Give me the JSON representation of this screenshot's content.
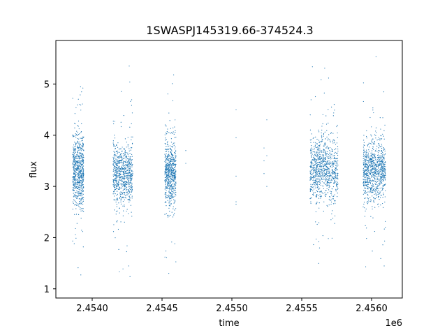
{
  "chart_data": {
    "type": "scatter",
    "title": "1SWASPJ145319.66-374524.3",
    "xlabel": "time",
    "ylabel": "flux",
    "x_offset_label": "1e6",
    "xlim": [
      2453740,
      2456220
    ],
    "ylim": [
      0.82,
      5.85
    ],
    "x_ticks": [
      2454000,
      2454500,
      2455000,
      2455500,
      2456000
    ],
    "x_tick_labels": [
      "2.4540",
      "2.4545",
      "2.4550",
      "2.4555",
      "2.4560"
    ],
    "y_ticks": [
      1,
      2,
      3,
      4,
      5
    ],
    "y_tick_labels": [
      "1",
      "2",
      "3",
      "4",
      "5"
    ],
    "grid": false,
    "point_color": "#1f77b4",
    "clusters": [
      {
        "x_start": 2453860,
        "x_end": 2453940,
        "center": 3.3,
        "spread": 0.35,
        "n": 700,
        "y_min": 1.05,
        "y_max": 4.95
      },
      {
        "x_start": 2454150,
        "x_end": 2454290,
        "center": 3.25,
        "spread": 0.3,
        "n": 750,
        "y_min": 1.1,
        "y_max": 5.6
      },
      {
        "x_start": 2454520,
        "x_end": 2454600,
        "center": 3.25,
        "spread": 0.32,
        "n": 650,
        "y_min": 1.05,
        "y_max": 5.5
      },
      {
        "x_start": 2455560,
        "x_end": 2455760,
        "center": 3.35,
        "spread": 0.3,
        "n": 900,
        "y_min": 1.15,
        "y_max": 5.55
      },
      {
        "x_start": 2455940,
        "x_end": 2456100,
        "center": 3.3,
        "spread": 0.28,
        "n": 900,
        "y_min": 1.15,
        "y_max": 5.55
      }
    ],
    "isolated_points": [
      {
        "x": 2454670,
        "y": 3.45
      },
      {
        "x": 2454670,
        "y": 3.7
      },
      {
        "x": 2455030,
        "y": 4.5
      },
      {
        "x": 2455030,
        "y": 3.95
      },
      {
        "x": 2455030,
        "y": 3.2
      },
      {
        "x": 2455030,
        "y": 2.65
      },
      {
        "x": 2455030,
        "y": 2.7
      },
      {
        "x": 2455230,
        "y": 3.75
      },
      {
        "x": 2455230,
        "y": 3.5
      },
      {
        "x": 2455230,
        "y": 3.25
      },
      {
        "x": 2455250,
        "y": 4.3
      },
      {
        "x": 2455250,
        "y": 3.0
      },
      {
        "x": 2455250,
        "y": 3.6
      }
    ]
  }
}
